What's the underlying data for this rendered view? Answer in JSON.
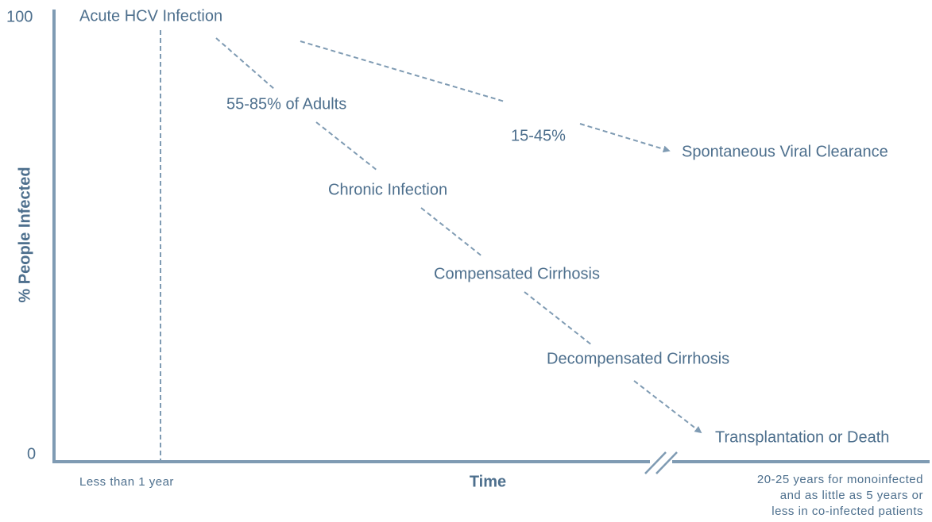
{
  "axis": {
    "y_max": "100",
    "y_min": "0",
    "y_label": "% People Infected",
    "x_label": "Time",
    "x_left": "Less than 1 year",
    "x_right": [
      "20-25 years for monoinfected",
      "and as little as 5 years or",
      "less in co-infected patients"
    ]
  },
  "nodes": [
    {
      "label": "Acute HCV Infection"
    },
    {
      "label": "Chronic Infection"
    },
    {
      "label": "Compensated Cirrhosis"
    },
    {
      "label": "Decompensated Cirrhosis"
    },
    {
      "label": "Transplantation or Death"
    },
    {
      "label": "Spontaneous Viral Clearance"
    }
  ],
  "edge_labels": [
    "55-85% of Adults",
    "15-45%"
  ]
}
